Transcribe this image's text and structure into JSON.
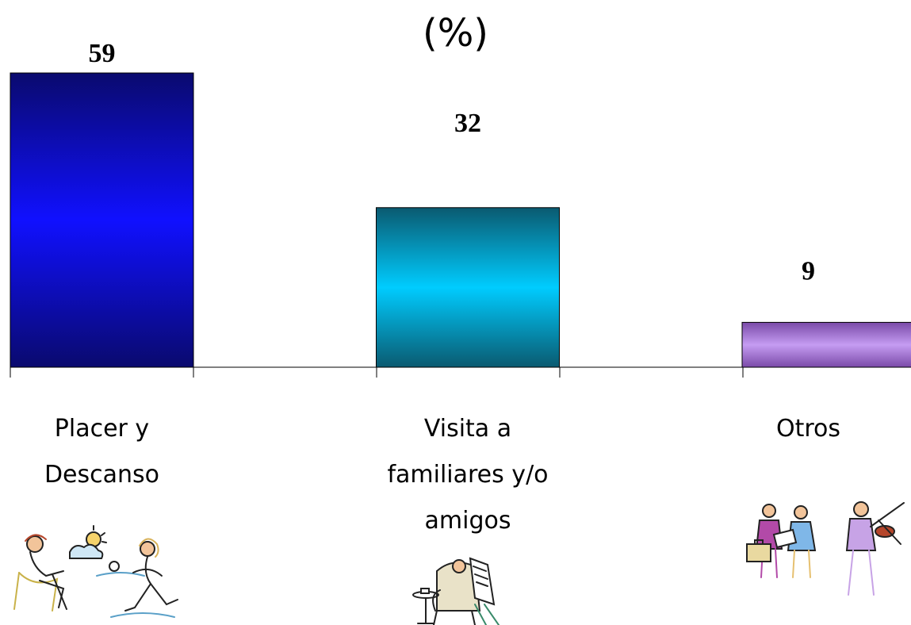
{
  "chart_data": {
    "type": "bar",
    "title": "(%)",
    "categories": [
      "Placer y Descanso",
      "Visita a familiares y/o amigos",
      "Otros"
    ],
    "category_lines": [
      [
        "Placer y",
        "Descanso"
      ],
      [
        "Visita a",
        "familiares y/o",
        "amigos"
      ],
      [
        "Otros"
      ]
    ],
    "values": [
      59,
      32,
      9
    ],
    "value_labels": [
      "59",
      "32",
      "9"
    ],
    "ylim": [
      0,
      65
    ],
    "grid": false,
    "legend": "none",
    "bar_colors": [
      {
        "edge": "#0a0a6e",
        "center": "#1010ff"
      },
      {
        "edge": "#0a5a70",
        "center": "#00ccff"
      },
      {
        "edge": "#7a4aa8",
        "center": "#c59cf2"
      }
    ],
    "icons": [
      "beach-relaxing-people-icon",
      "person-reading-newspaper-icon",
      "business-people-and-violinist-icon"
    ]
  }
}
